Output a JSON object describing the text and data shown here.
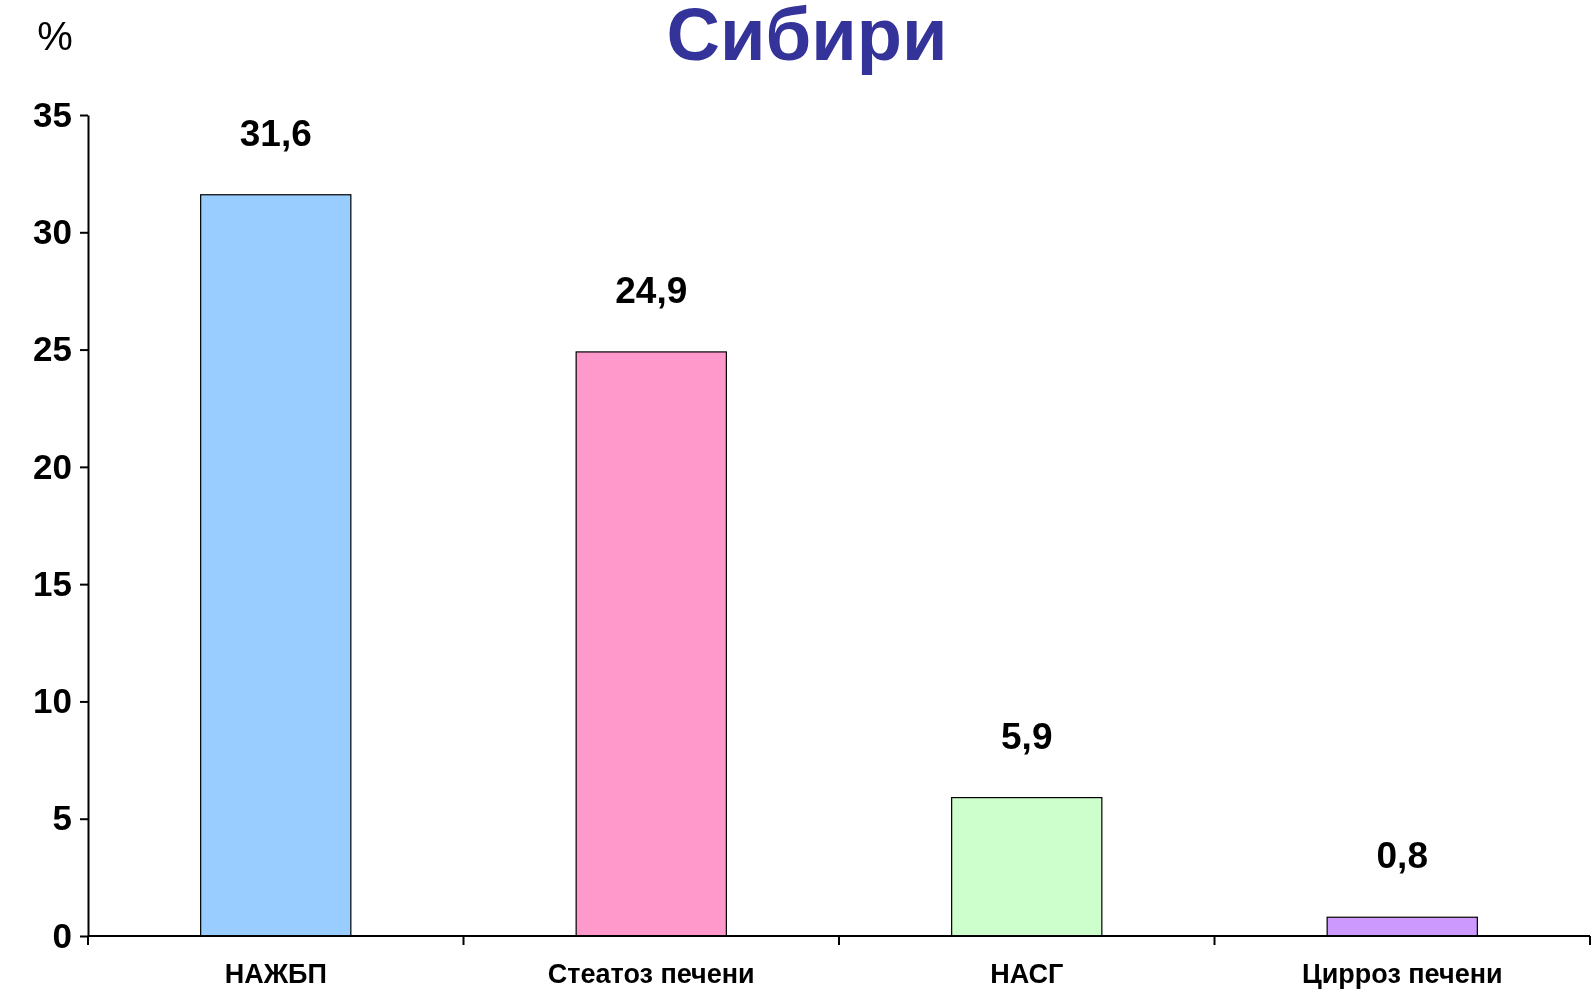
{
  "chart_data": {
    "type": "bar",
    "title": "Сибири",
    "ylabel": "%",
    "categories": [
      "НАЖБП",
      "Стеатоз печени",
      "НАСГ",
      "Цирроз печени"
    ],
    "values": [
      31.6,
      24.9,
      5.9,
      0.8
    ],
    "colors": [
      "#99ccff",
      "#ff99cc",
      "#ccffcc",
      "#cc99ff"
    ],
    "value_labels": [
      "31,6",
      "24,9",
      "5,9",
      "0,8"
    ],
    "ylim": [
      0,
      35
    ],
    "yticks": [
      0,
      5,
      10,
      15,
      20,
      25,
      30,
      35
    ]
  }
}
